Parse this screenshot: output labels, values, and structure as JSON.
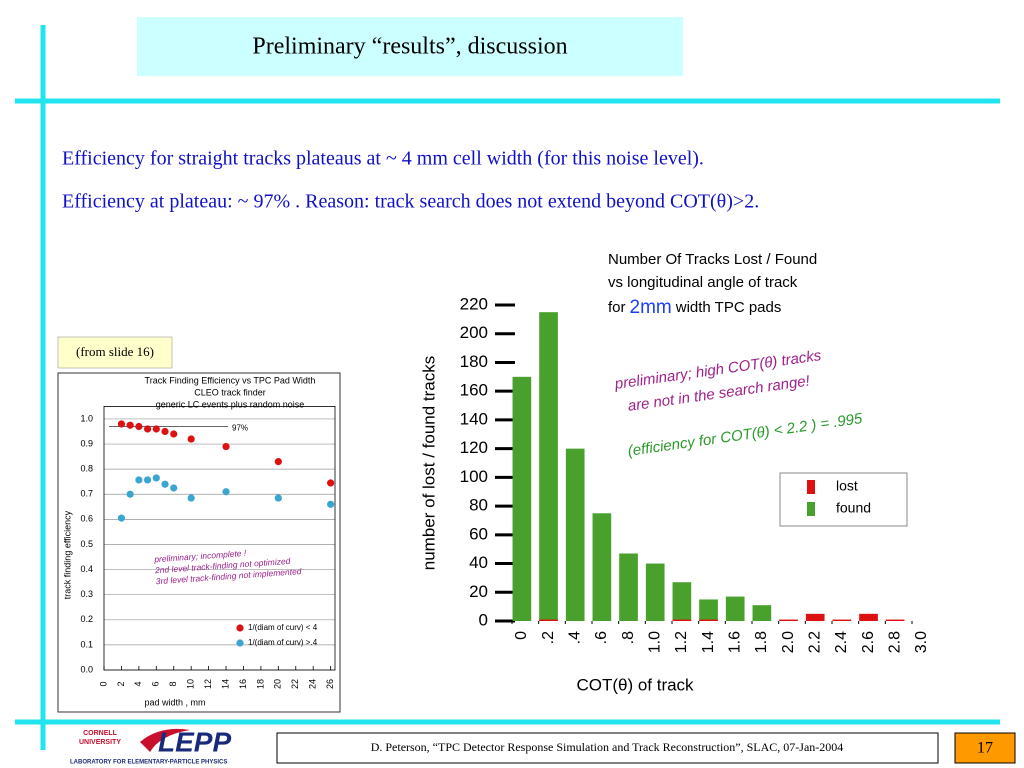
{
  "slide": {
    "title": "Preliminary “results”, discussion",
    "body": [
      "Efficiency for straight tracks plateaus at ~ 4 mm cell width (for this noise level).",
      "Efficiency at plateau: ~ 97% .  Reason: track search does not extend beyond COT(θ)>2."
    ],
    "note": "(from slide 16)",
    "footer": "D. Peterson, “TPC Detector Response Simulation and Track Reconstruction”, SLAC, 07-Jan-2004",
    "page": "17",
    "logo": {
      "line1": "CORNELL",
      "line2": "UNIVERSITY",
      "name": "LEPP",
      "subtitle": "LABORATORY FOR ELEMENTARY-PARTICLE PHYSICS"
    }
  },
  "chart_data": [
    {
      "type": "scatter",
      "title": [
        "Track Finding Efficiency vs TPC Pad Width",
        "CLEO track finder",
        "generic LC events plus random noise"
      ],
      "xlabel": "pad width , mm",
      "ylabel": "track finding efficiency",
      "xlim": [
        0,
        26.5
      ],
      "ylim": [
        0,
        1.05
      ],
      "xticks": [
        0,
        2,
        4,
        6,
        8,
        10,
        12,
        14,
        16,
        18,
        20,
        22,
        24,
        26
      ],
      "yticks": [
        {
          "value": 0,
          "label": "0.0"
        },
        0.1,
        0.2,
        0.3,
        0.4,
        0.5,
        0.6,
        0.7,
        0.8,
        0.9,
        {
          "value": 1,
          "label": "1.0"
        }
      ],
      "grid": true,
      "legend": "lower right",
      "reference_line": {
        "value": 0.97,
        "label": "97%"
      },
      "annotation": [
        "preliminary; incomplete !",
        "2nd level track-finding not optimized",
        "3rd level track-finding not implemented"
      ],
      "series": [
        {
          "name": "1/(diam of curv) < 4",
          "color": "#dd1111",
          "x": [
            2,
            3,
            4,
            5,
            6,
            7,
            8,
            10,
            14,
            20,
            26
          ],
          "values": [
            0.98,
            0.975,
            0.97,
            0.96,
            0.96,
            0.95,
            0.94,
            0.92,
            0.89,
            0.83,
            0.745
          ]
        },
        {
          "name": "1/(diam of curv) >.4",
          "color": "#3aa6d0",
          "x": [
            2,
            3,
            4,
            5,
            6,
            7,
            8,
            10,
            14,
            20,
            26
          ],
          "values": [
            0.605,
            0.7,
            0.757,
            0.757,
            0.765,
            0.74,
            0.725,
            0.685,
            0.71,
            0.685,
            0.66
          ]
        }
      ]
    },
    {
      "type": "histogram",
      "title": [
        "Number Of Tracks Lost / Found",
        "vs longitudinal angle of track"
      ],
      "title_line3": [
        "for",
        "2mm",
        "width TPC pads"
      ],
      "xlabel": "COT(θ) of track",
      "ylabel": "number of lost / found tracks",
      "xlim": [
        0,
        3
      ],
      "ylim": [
        0,
        220
      ],
      "bins": [
        0,
        0.2,
        0.4,
        0.6,
        0.8,
        1.0,
        1.2,
        1.4,
        1.6,
        1.8,
        2.0,
        2.2,
        2.4,
        2.6,
        2.8,
        3.0
      ],
      "xticks": [
        0,
        {
          "value": 0.2,
          "label": ".2"
        },
        {
          "value": 0.4,
          "label": ".4"
        },
        {
          "value": 0.6,
          "label": ".6"
        },
        {
          "value": 0.8,
          "label": ".8"
        },
        {
          "value": 1,
          "label": "1.0"
        },
        1.2,
        1.4,
        1.6,
        1.8,
        {
          "value": 2,
          "label": "2.0"
        },
        2.2,
        2.4,
        2.6,
        2.8,
        {
          "value": 3,
          "label": "3.0"
        }
      ],
      "yticks": [
        0,
        20,
        40,
        60,
        80,
        100,
        120,
        140,
        160,
        180,
        200,
        220
      ],
      "legend": "right",
      "annotations": [
        "preliminary;  high COT(θ) tracks",
        "are not in the search range!",
        "(efficiency for  COT(θ) < 2.2 ) = .995"
      ],
      "series": [
        {
          "name": "found",
          "color": "#4aa02c",
          "values": [
            170,
            215,
            120,
            75,
            47,
            40,
            27,
            15,
            17,
            11,
            0,
            0,
            0,
            0,
            0
          ]
        },
        {
          "name": "lost",
          "color": "#dd1111",
          "values": [
            0,
            1,
            0,
            0,
            0,
            0,
            1,
            1,
            0,
            0,
            1,
            5,
            1,
            5,
            1
          ]
        }
      ]
    }
  ]
}
